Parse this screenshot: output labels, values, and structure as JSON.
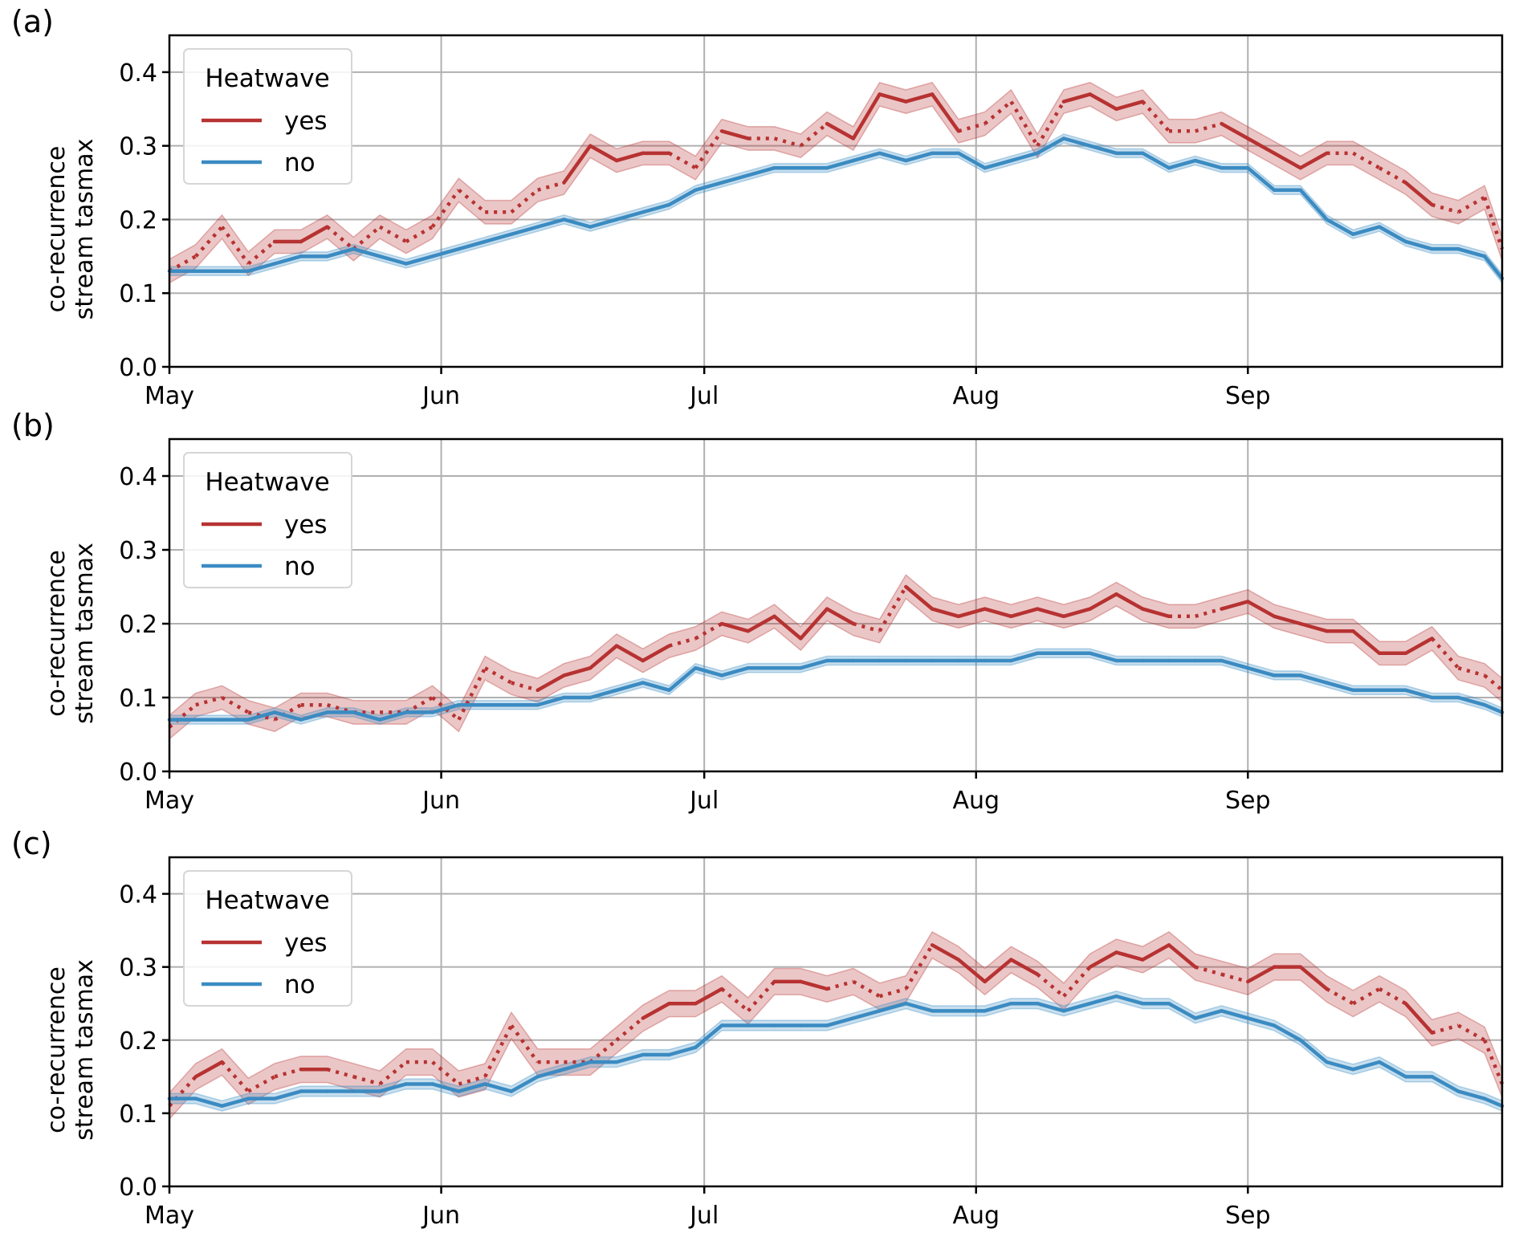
{
  "figure": {
    "panels": [
      "(a)",
      "(b)",
      "(c)"
    ]
  },
  "chart_data": [
    {
      "panel": "(a)",
      "type": "line",
      "title": "",
      "xlabel": "",
      "ylabel": "co-recurrence\nstream tasmax",
      "ylabel_lines": [
        "co-recurrence",
        "stream tasmax"
      ],
      "x_unit": "days since May 1",
      "xlim": [
        0,
        152
      ],
      "ylim": [
        0,
        0.45
      ],
      "yticks": [
        0.0,
        0.1,
        0.2,
        0.3,
        0.4
      ],
      "ytick_labels": [
        "0.0",
        "0.1",
        "0.2",
        "0.3",
        "0.4"
      ],
      "xticks": [
        0,
        31,
        61,
        92,
        123
      ],
      "xtick_labels": [
        "May",
        "Jun",
        "Jul",
        "Aug",
        "Sep"
      ],
      "grid": true,
      "legend": {
        "title": "Heatwave",
        "position": "top-left",
        "entries": [
          "yes",
          "no"
        ]
      },
      "x": [
        0,
        3,
        6,
        9,
        12,
        15,
        18,
        21,
        24,
        27,
        30,
        33,
        36,
        39,
        42,
        45,
        48,
        51,
        54,
        57,
        60,
        63,
        66,
        69,
        72,
        75,
        78,
        81,
        84,
        87,
        90,
        93,
        96,
        99,
        102,
        105,
        108,
        111,
        114,
        117,
        120,
        123,
        126,
        129,
        132,
        135,
        138,
        141,
        144,
        147,
        150,
        152
      ],
      "series": [
        {
          "name": "yes",
          "color": "#b73232",
          "values": [
            0.13,
            0.15,
            0.19,
            0.14,
            0.17,
            0.17,
            0.19,
            0.16,
            0.19,
            0.17,
            0.19,
            0.24,
            0.21,
            0.21,
            0.24,
            0.25,
            0.3,
            0.28,
            0.29,
            0.29,
            0.27,
            0.32,
            0.31,
            0.31,
            0.3,
            0.33,
            0.31,
            0.37,
            0.36,
            0.37,
            0.32,
            0.33,
            0.36,
            0.3,
            0.36,
            0.37,
            0.35,
            0.36,
            0.32,
            0.32,
            0.33,
            0.31,
            0.29,
            0.27,
            0.29,
            0.29,
            0.27,
            0.25,
            0.22,
            0.21,
            0.23,
            0.16
          ],
          "ci": 0.016,
          "significant": [
            true,
            false,
            true,
            false,
            true,
            true,
            true,
            false,
            true,
            false,
            false,
            true,
            false,
            false,
            false,
            true,
            true,
            true,
            true,
            true,
            false,
            true,
            true,
            false,
            false,
            true,
            true,
            true,
            true,
            true,
            true,
            false,
            true,
            false,
            true,
            true,
            true,
            true,
            false,
            false,
            true,
            true,
            true,
            true,
            true,
            false,
            false,
            true,
            true,
            false,
            false,
            true
          ]
        },
        {
          "name": "no",
          "color": "#3b8bc2",
          "values": [
            0.13,
            0.13,
            0.13,
            0.13,
            0.14,
            0.15,
            0.15,
            0.16,
            0.15,
            0.14,
            0.15,
            0.16,
            0.17,
            0.18,
            0.19,
            0.2,
            0.19,
            0.2,
            0.21,
            0.22,
            0.24,
            0.25,
            0.26,
            0.27,
            0.27,
            0.27,
            0.28,
            0.29,
            0.28,
            0.29,
            0.29,
            0.27,
            0.28,
            0.29,
            0.31,
            0.3,
            0.29,
            0.29,
            0.27,
            0.28,
            0.27,
            0.27,
            0.24,
            0.24,
            0.2,
            0.18,
            0.19,
            0.17,
            0.16,
            0.16,
            0.15,
            0.12
          ],
          "ci": 0.006
        }
      ]
    },
    {
      "panel": "(b)",
      "type": "line",
      "title": "",
      "xlabel": "",
      "ylabel": "co-recurrence\nstream tasmax",
      "ylabel_lines": [
        "co-recurrence",
        "stream tasmax"
      ],
      "x_unit": "days since May 1",
      "xlim": [
        0,
        152
      ],
      "ylim": [
        0,
        0.45
      ],
      "yticks": [
        0.0,
        0.1,
        0.2,
        0.3,
        0.4
      ],
      "ytick_labels": [
        "0.0",
        "0.1",
        "0.2",
        "0.3",
        "0.4"
      ],
      "xticks": [
        0,
        31,
        61,
        92,
        123
      ],
      "xtick_labels": [
        "May",
        "Jun",
        "Jul",
        "Aug",
        "Sep"
      ],
      "grid": true,
      "legend": {
        "title": "Heatwave",
        "position": "top-left",
        "entries": [
          "yes",
          "no"
        ]
      },
      "x": [
        0,
        3,
        6,
        9,
        12,
        15,
        18,
        21,
        24,
        27,
        30,
        33,
        36,
        39,
        42,
        45,
        48,
        51,
        54,
        57,
        60,
        63,
        66,
        69,
        72,
        75,
        78,
        81,
        84,
        87,
        90,
        93,
        96,
        99,
        102,
        105,
        108,
        111,
        114,
        117,
        120,
        123,
        126,
        129,
        132,
        135,
        138,
        141,
        144,
        147,
        150,
        152
      ],
      "series": [
        {
          "name": "yes",
          "color": "#b73232",
          "values": [
            0.06,
            0.09,
            0.1,
            0.08,
            0.07,
            0.09,
            0.09,
            0.08,
            0.08,
            0.08,
            0.1,
            0.07,
            0.14,
            0.12,
            0.11,
            0.13,
            0.14,
            0.17,
            0.15,
            0.17,
            0.18,
            0.2,
            0.19,
            0.21,
            0.18,
            0.22,
            0.2,
            0.19,
            0.25,
            0.22,
            0.21,
            0.22,
            0.21,
            0.22,
            0.21,
            0.22,
            0.24,
            0.22,
            0.21,
            0.21,
            0.22,
            0.23,
            0.21,
            0.2,
            0.19,
            0.19,
            0.16,
            0.16,
            0.18,
            0.14,
            0.13,
            0.11
          ],
          "ci": 0.016,
          "significant": [
            false,
            false,
            false,
            false,
            false,
            false,
            false,
            false,
            false,
            false,
            false,
            false,
            true,
            false,
            true,
            true,
            true,
            true,
            true,
            true,
            false,
            true,
            true,
            true,
            true,
            true,
            true,
            false,
            true,
            true,
            true,
            true,
            true,
            true,
            true,
            true,
            true,
            true,
            true,
            false,
            true,
            true,
            true,
            true,
            true,
            true,
            true,
            true,
            true,
            false,
            false,
            false
          ]
        },
        {
          "name": "no",
          "color": "#3b8bc2",
          "values": [
            0.07,
            0.07,
            0.07,
            0.07,
            0.08,
            0.07,
            0.08,
            0.08,
            0.07,
            0.08,
            0.08,
            0.09,
            0.09,
            0.09,
            0.09,
            0.1,
            0.1,
            0.11,
            0.12,
            0.11,
            0.14,
            0.13,
            0.14,
            0.14,
            0.14,
            0.15,
            0.15,
            0.15,
            0.15,
            0.15,
            0.15,
            0.15,
            0.15,
            0.16,
            0.16,
            0.16,
            0.15,
            0.15,
            0.15,
            0.15,
            0.15,
            0.14,
            0.13,
            0.13,
            0.12,
            0.11,
            0.11,
            0.11,
            0.1,
            0.1,
            0.09,
            0.08
          ],
          "ci": 0.006
        }
      ]
    },
    {
      "panel": "(c)",
      "type": "line",
      "title": "",
      "xlabel": "",
      "ylabel": "co-recurrence\nstream tasmax",
      "ylabel_lines": [
        "co-recurrence",
        "stream tasmax"
      ],
      "x_unit": "days since May 1",
      "xlim": [
        0,
        152
      ],
      "ylim": [
        0,
        0.45
      ],
      "yticks": [
        0.0,
        0.1,
        0.2,
        0.3,
        0.4
      ],
      "ytick_labels": [
        "0.0",
        "0.1",
        "0.2",
        "0.3",
        "0.4"
      ],
      "xticks": [
        0,
        31,
        61,
        92,
        123
      ],
      "xtick_labels": [
        "May",
        "Jun",
        "Jul",
        "Aug",
        "Sep"
      ],
      "grid": true,
      "legend": {
        "title": "Heatwave",
        "position": "top-left",
        "entries": [
          "yes",
          "no"
        ]
      },
      "x": [
        0,
        3,
        6,
        9,
        12,
        15,
        18,
        21,
        24,
        27,
        30,
        33,
        36,
        39,
        42,
        45,
        48,
        51,
        54,
        57,
        60,
        63,
        66,
        69,
        72,
        75,
        78,
        81,
        84,
        87,
        90,
        93,
        96,
        99,
        102,
        105,
        108,
        111,
        114,
        117,
        120,
        123,
        126,
        129,
        132,
        135,
        138,
        141,
        144,
        147,
        150,
        152
      ],
      "series": [
        {
          "name": "yes",
          "color": "#b73232",
          "values": [
            0.11,
            0.15,
            0.17,
            0.13,
            0.15,
            0.16,
            0.16,
            0.15,
            0.14,
            0.17,
            0.17,
            0.14,
            0.15,
            0.22,
            0.17,
            0.17,
            0.17,
            0.2,
            0.23,
            0.25,
            0.25,
            0.27,
            0.24,
            0.28,
            0.28,
            0.27,
            0.28,
            0.26,
            0.27,
            0.33,
            0.31,
            0.28,
            0.31,
            0.29,
            0.26,
            0.3,
            0.32,
            0.31,
            0.33,
            0.3,
            0.29,
            0.28,
            0.3,
            0.3,
            0.27,
            0.25,
            0.27,
            0.25,
            0.21,
            0.22,
            0.2,
            0.14
          ],
          "ci": 0.018,
          "significant": [
            false,
            true,
            true,
            false,
            false,
            true,
            true,
            false,
            false,
            false,
            false,
            false,
            false,
            true,
            false,
            false,
            false,
            false,
            true,
            true,
            true,
            true,
            false,
            true,
            true,
            true,
            false,
            false,
            false,
            true,
            true,
            true,
            true,
            true,
            false,
            true,
            true,
            true,
            true,
            true,
            false,
            true,
            true,
            true,
            true,
            false,
            false,
            true,
            true,
            false,
            false,
            true
          ]
        },
        {
          "name": "no",
          "color": "#3b8bc2",
          "values": [
            0.12,
            0.12,
            0.11,
            0.12,
            0.12,
            0.13,
            0.13,
            0.13,
            0.13,
            0.14,
            0.14,
            0.13,
            0.14,
            0.13,
            0.15,
            0.16,
            0.17,
            0.17,
            0.18,
            0.18,
            0.19,
            0.22,
            0.22,
            0.22,
            0.22,
            0.22,
            0.23,
            0.24,
            0.25,
            0.24,
            0.24,
            0.24,
            0.25,
            0.25,
            0.24,
            0.25,
            0.26,
            0.25,
            0.25,
            0.23,
            0.24,
            0.23,
            0.22,
            0.2,
            0.17,
            0.16,
            0.17,
            0.15,
            0.15,
            0.13,
            0.12,
            0.11
          ],
          "ci": 0.007
        }
      ]
    }
  ]
}
